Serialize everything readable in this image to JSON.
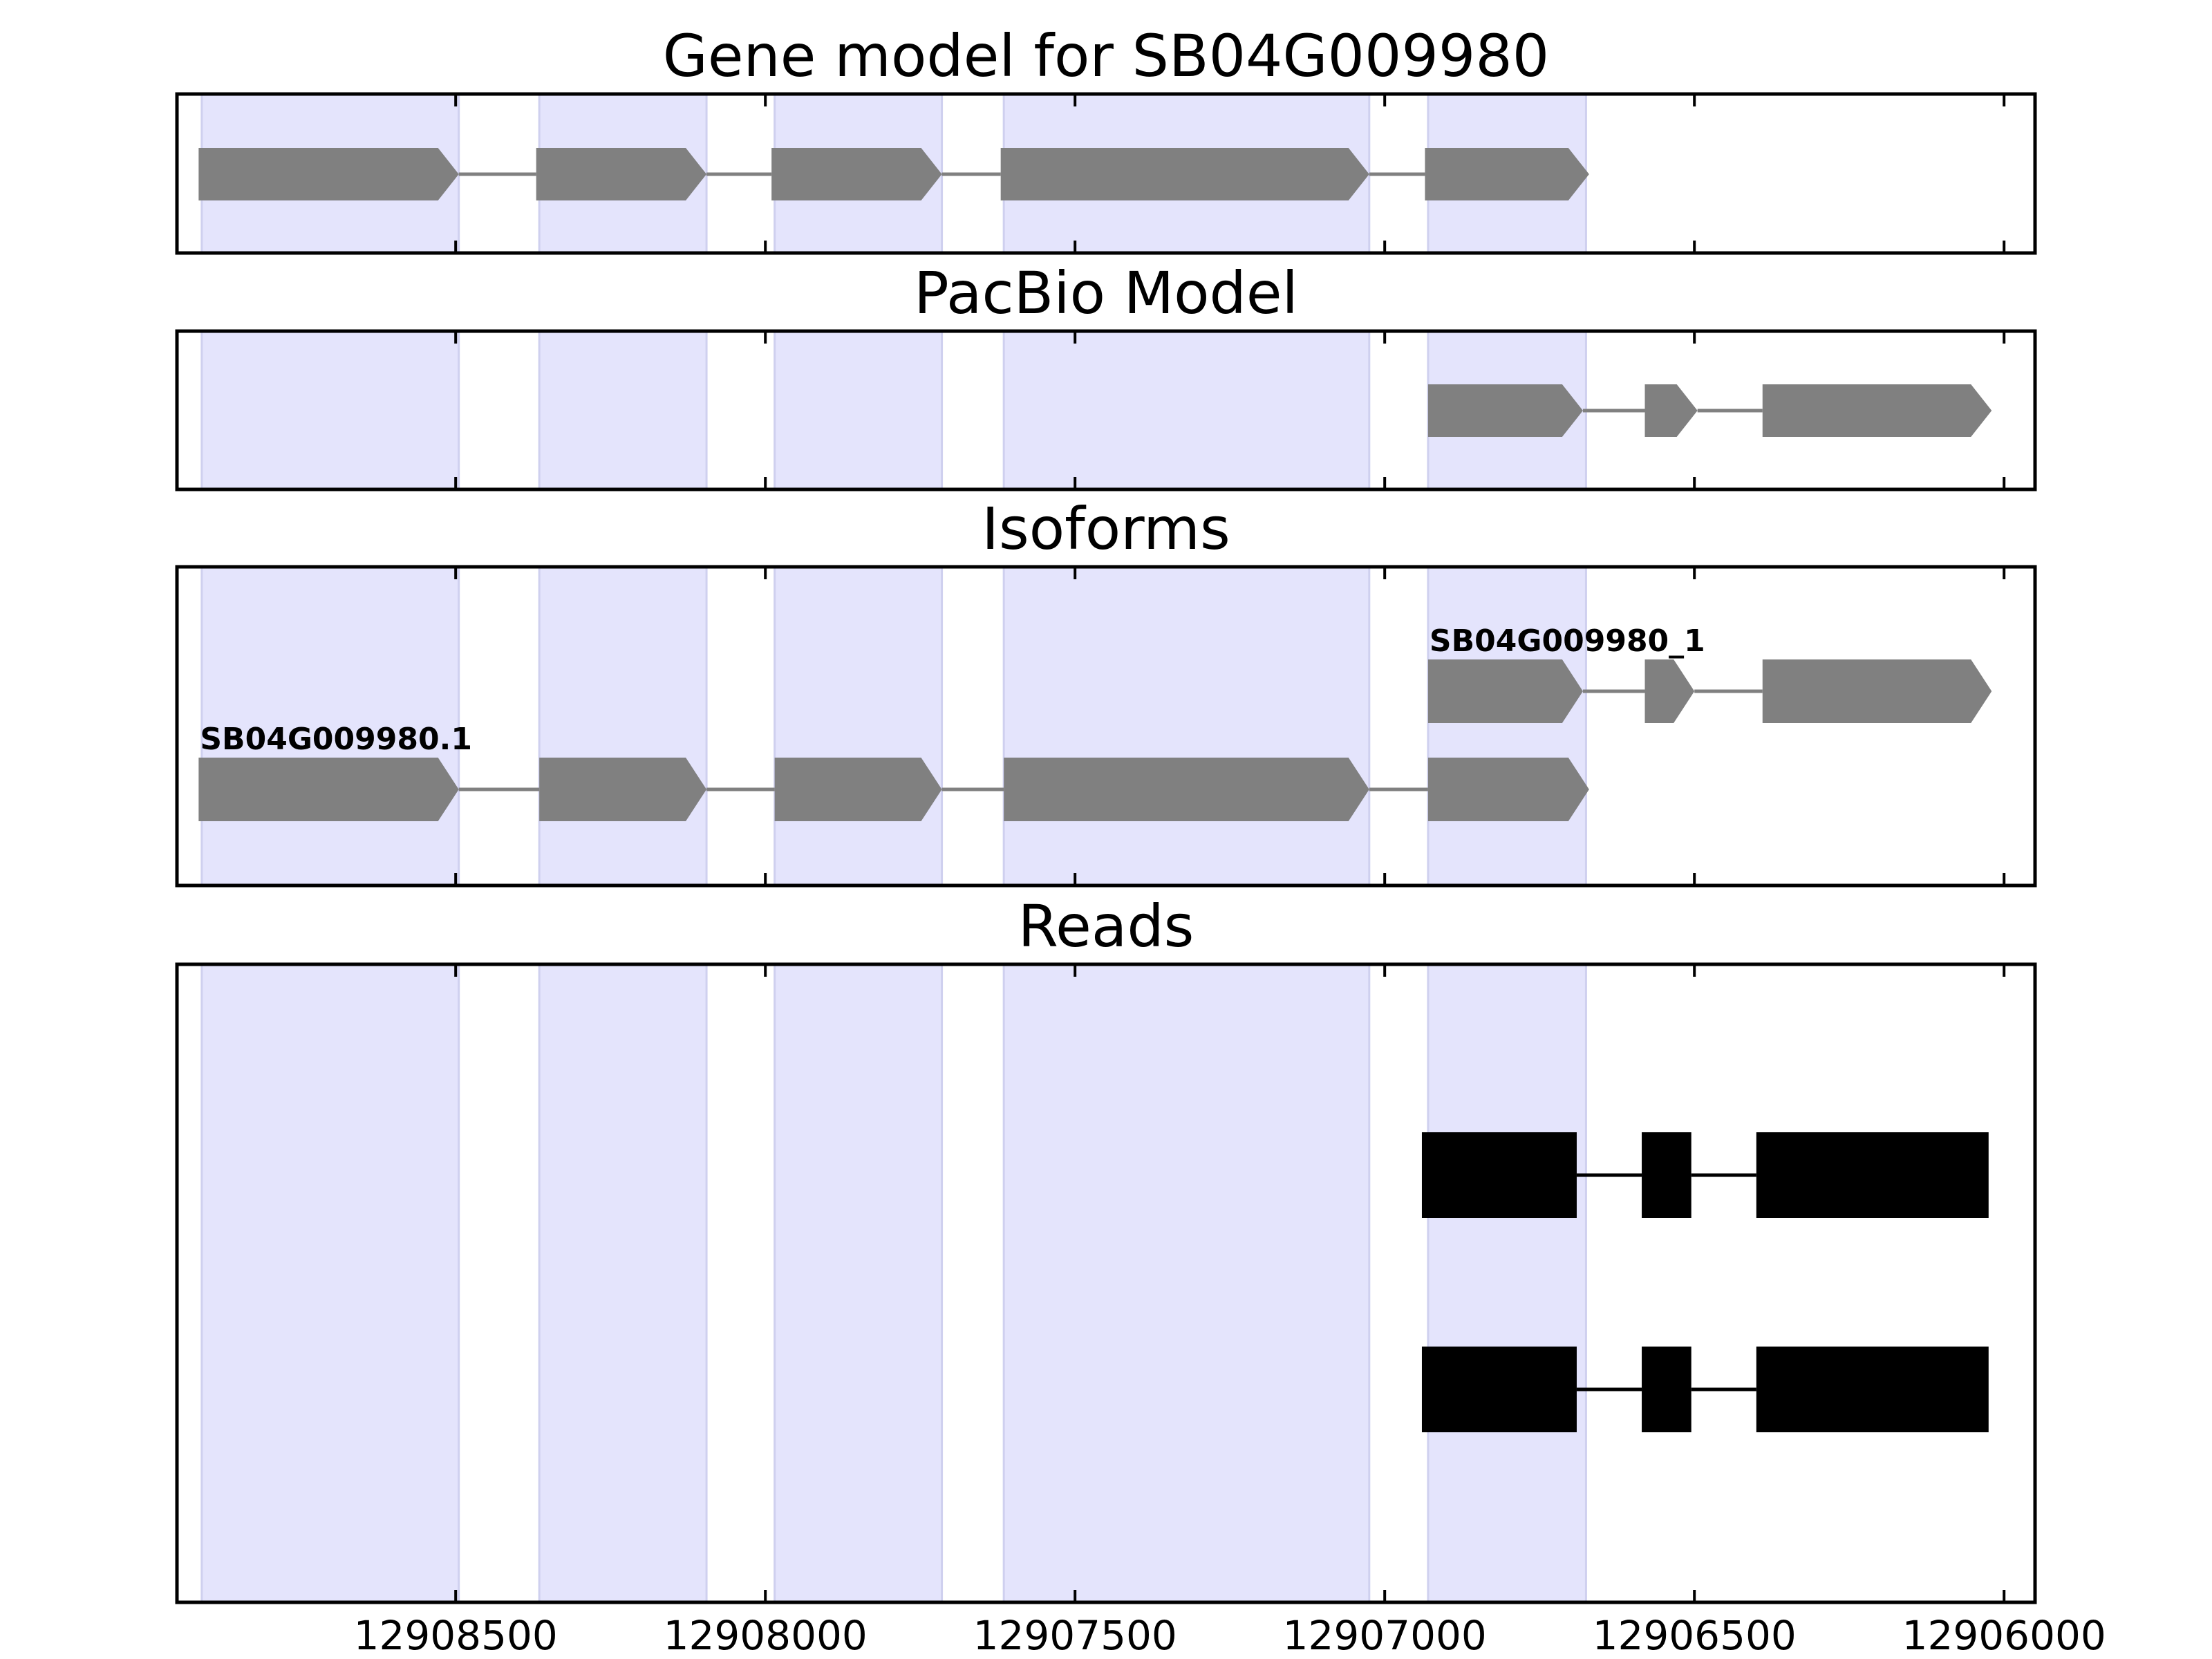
{
  "chart_data": {
    "type": "gene-track",
    "x_reversed": true,
    "x_range": [
      12908950,
      12905950
    ],
    "x_ticks": [
      12908500,
      12908000,
      12907500,
      12907000,
      12906500,
      12906000
    ],
    "x_tick_labels": [
      "12908500",
      "12908000",
      "12907500",
      "12907000",
      "12906500",
      "12906000"
    ],
    "shaded_regions": [
      [
        12908910,
        12908495
      ],
      [
        12908365,
        12908095
      ],
      [
        12907985,
        12907715
      ],
      [
        12907615,
        12907025
      ],
      [
        12906930,
        12906675
      ]
    ],
    "colors": {
      "shade": "#e4e4fc",
      "feature": "#808080",
      "read": "#000000",
      "intron": "#808080",
      "frame": "#000000"
    },
    "panels": [
      {
        "title": "Gene model for SB04G009980",
        "tracks": [
          {
            "label": "",
            "exons": [
              [
                12908915,
                12908495
              ],
              [
                12908370,
                12908095
              ],
              [
                12907990,
                12907715
              ],
              [
                12907620,
                12907025
              ],
              [
                12906935,
                12906670
              ]
            ]
          }
        ]
      },
      {
        "title": "PacBio Model",
        "tracks": [
          {
            "label": "",
            "exons": [
              [
                12906930,
                12906680
              ],
              [
                12906580,
                12906495
              ],
              [
                12906390,
                12906020
              ]
            ]
          }
        ]
      },
      {
        "title": "Isoforms",
        "tracks": [
          {
            "label": "SB04G009980_1",
            "exons": [
              [
                12906930,
                12906680
              ],
              [
                12906580,
                12906500
              ],
              [
                12906390,
                12906020
              ]
            ]
          },
          {
            "label": "SB04G009980.1",
            "exons": [
              [
                12908915,
                12908495
              ],
              [
                12908365,
                12908095
              ],
              [
                12907985,
                12907715
              ],
              [
                12907615,
                12907025
              ],
              [
                12906930,
                12906670
              ]
            ]
          }
        ]
      },
      {
        "title": "Reads",
        "tracks": [
          {
            "label": "",
            "exons": [
              [
                12906940,
                12906690
              ],
              [
                12906585,
                12906505
              ],
              [
                12906400,
                12906025
              ]
            ]
          },
          {
            "label": "",
            "exons": [
              [
                12906940,
                12906690
              ],
              [
                12906585,
                12906505
              ],
              [
                12906400,
                12906025
              ]
            ]
          }
        ]
      }
    ]
  }
}
